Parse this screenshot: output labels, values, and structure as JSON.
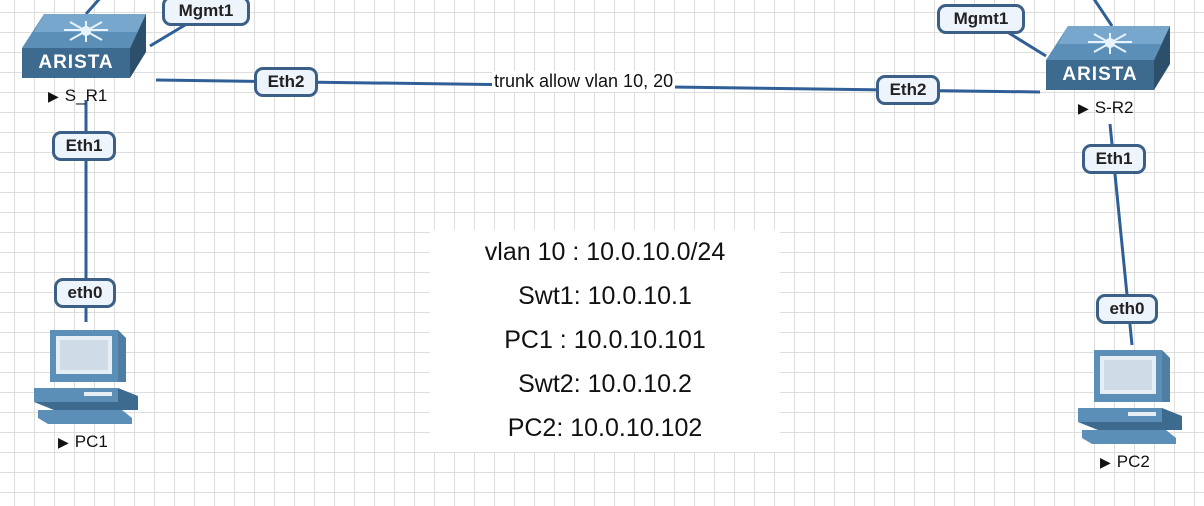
{
  "switches": [
    {
      "name": "S_R1",
      "brand": "ARISTA"
    },
    {
      "name": "S-R2",
      "brand": "ARISTA"
    }
  ],
  "pcs": [
    {
      "name": "PC1"
    },
    {
      "name": "PC2"
    }
  ],
  "ports": {
    "sr1_mgmt": "Mgmt1",
    "sr1_eth2": "Eth2",
    "sr1_eth1": "Eth1",
    "pc1_eth0": "eth0",
    "sr2_mgmt": "Mgmt1",
    "sr2_eth2": "Eth2",
    "sr2_eth1": "Eth1",
    "pc2_eth0": "eth0"
  },
  "trunk_label": "trunk allow vlan 10, 20",
  "notes": [
    "vlan 10 : 10.0.10.0/24",
    "Swt1: 10.0.10.1",
    "PC1 : 10.0.10.101",
    "Swt2: 10.0.10.2",
    "PC2: 10.0.10.102"
  ],
  "colors": {
    "link": "#2f5f96",
    "port_border": "#3b5f86",
    "device": "#3d6a8f",
    "grid": "#dedede"
  }
}
